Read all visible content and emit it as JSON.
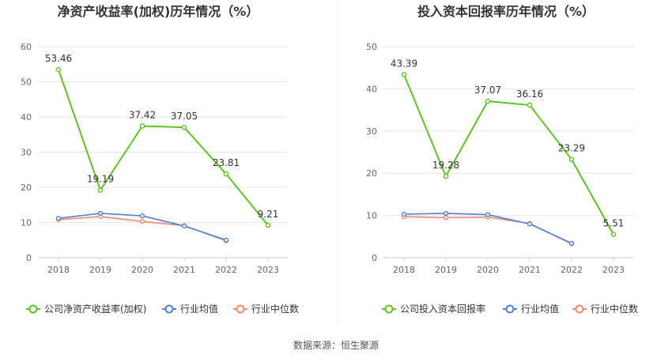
{
  "source_text": "数据来源：恒生聚源",
  "colors": {
    "company": "#5ec224",
    "industry_avg": "#4f7fd9",
    "industry_median": "#f08a6a"
  },
  "chart_data": [
    {
      "type": "line",
      "title": "净资产收益率(加权)历年情况（%）",
      "x": [
        "2018",
        "2019",
        "2020",
        "2021",
        "2022",
        "2023"
      ],
      "ylim": [
        0,
        60
      ],
      "yticks": [
        0,
        10,
        20,
        30,
        40,
        50,
        60
      ],
      "grid": true,
      "legend_position": "bottom",
      "series": [
        {
          "name": "公司净资产收益率(加权)",
          "color": "#5ec224",
          "values": [
            53.46,
            19.19,
            37.42,
            37.05,
            23.81,
            9.21
          ],
          "labels": [
            "53.46",
            "19.19",
            "37.42",
            "37.05",
            "23.81",
            "9.21"
          ]
        },
        {
          "name": "行业均值",
          "color": "#4f7fd9",
          "values": [
            11.2,
            12.6,
            11.9,
            9.0,
            5.0,
            null
          ]
        },
        {
          "name": "行业中位数",
          "color": "#f08a6a",
          "values": [
            10.8,
            11.7,
            10.3,
            9.1,
            4.8,
            null
          ]
        }
      ]
    },
    {
      "type": "line",
      "title": "投入资本回报率历年情况（%）",
      "x": [
        "2018",
        "2019",
        "2020",
        "2021",
        "2022",
        "2023"
      ],
      "ylim": [
        0,
        50
      ],
      "yticks": [
        0,
        10,
        20,
        30,
        40,
        50
      ],
      "grid": true,
      "legend_position": "bottom",
      "series": [
        {
          "name": "公司投入资本回报率",
          "color": "#5ec224",
          "values": [
            43.39,
            19.28,
            37.07,
            36.16,
            23.29,
            5.51
          ],
          "labels": [
            "43.39",
            "19.28",
            "37.07",
            "36.16",
            "23.29",
            "5.51"
          ]
        },
        {
          "name": "行业均值",
          "color": "#4f7fd9",
          "values": [
            10.3,
            10.5,
            10.2,
            8.0,
            3.4,
            null
          ]
        },
        {
          "name": "行业中位数",
          "color": "#f08a6a",
          "values": [
            9.7,
            9.5,
            9.6,
            8.1,
            3.3,
            null
          ]
        }
      ]
    }
  ]
}
